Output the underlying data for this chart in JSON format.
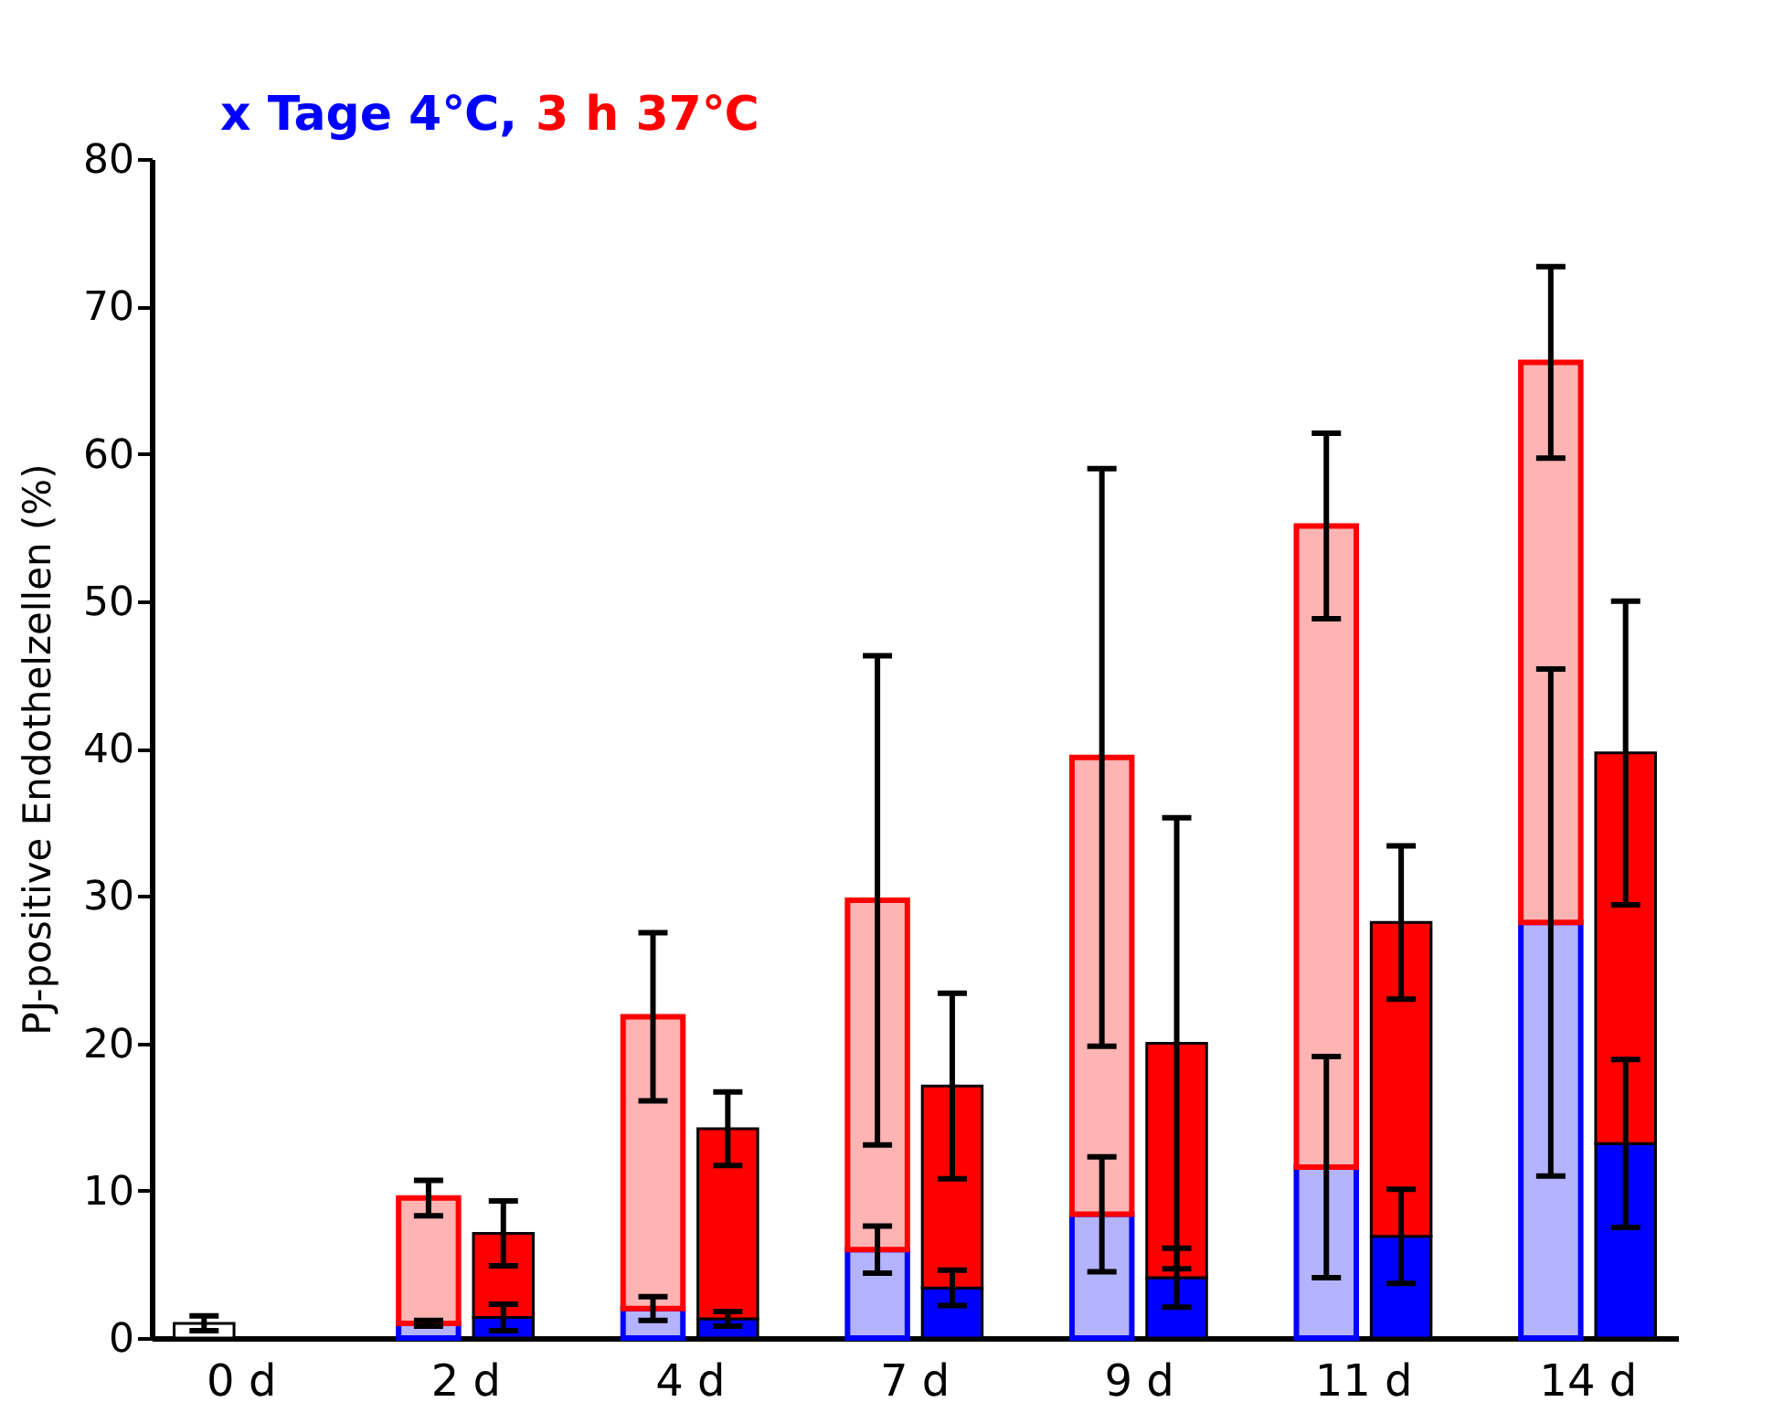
{
  "chart_data": {
    "type": "bar",
    "stacked": true,
    "ylabel": "PJ-positive Endothelzellen (%)",
    "categories": [
      "0 d",
      null,
      null,
      "2 d",
      null,
      null,
      "4 d",
      null,
      null,
      "7 d",
      null,
      null,
      "9 d",
      null,
      null,
      "11 d",
      null,
      null,
      "14 d",
      null
    ],
    "ylim": [
      0,
      80
    ],
    "yticks": [
      0,
      10,
      20,
      30,
      40,
      50,
      60,
      70,
      80
    ],
    "grid": false,
    "legend": "top left",
    "series": [
      {
        "color": "#ffffff",
        "values": [
          1.0,
          null,
          null,
          null,
          null,
          null,
          null,
          null,
          null,
          null,
          null,
          null,
          null,
          null,
          null,
          null,
          null,
          null,
          null,
          null
        ],
        "errors": [
          0.5,
          null,
          null,
          null,
          null,
          null,
          null,
          null,
          null,
          null,
          null,
          null,
          null,
          null,
          null,
          null,
          null,
          null,
          null,
          null
        ]
      },
      {
        "name": "x Tage 4℃,",
        "color": "#0000ff",
        "values": [
          null,
          null,
          null,
          1.0,
          1.4,
          null,
          2.0,
          1.3,
          null,
          6.0,
          3.4,
          null,
          8.4,
          4.1,
          null,
          11.6,
          6.9,
          null,
          28.2,
          13.2
        ],
        "errors": [
          null,
          null,
          null,
          0.2,
          0.9,
          null,
          0.8,
          0.5,
          null,
          1.6,
          1.2,
          null,
          3.9,
          2.0,
          null,
          7.5,
          3.2,
          null,
          17.2,
          5.7
        ],
        "colors": [
          null,
          null,
          null,
          "#b3b3ff",
          "#0000ff",
          null,
          "#b3b3ff",
          "#0000ff",
          null,
          "#b3b3ff",
          "#0000ff",
          null,
          "#b3b3ff",
          "#0000ff",
          null,
          "#b3b3ff",
          "#0000ff",
          null,
          "#b3b3ff",
          "#0000ff"
        ]
      },
      {
        "name": "3 h 37℃",
        "color": "#ff0000",
        "values": [
          null,
          null,
          null,
          8.5,
          5.7,
          null,
          19.8,
          12.9,
          null,
          23.7,
          13.7,
          null,
          31.0,
          15.9,
          null,
          43.5,
          21.3,
          null,
          38.0,
          26.5
        ],
        "errors": [
          null,
          null,
          null,
          1.2,
          2.2,
          null,
          5.7,
          2.5,
          null,
          16.6,
          6.3,
          null,
          19.6,
          15.3,
          null,
          6.3,
          5.2,
          null,
          6.5,
          10.3
        ],
        "colors": [
          null,
          null,
          null,
          "#ffb3b3",
          "#ff0000",
          null,
          "#ffb3b3",
          "#ff0000",
          null,
          "#ffb3b3",
          "#ff0000",
          null,
          "#ffb3b3",
          "#ff0000",
          null,
          "#ffb3b3",
          "#ff0000",
          null,
          "#ffb3b3",
          "#ff0000"
        ]
      }
    ]
  }
}
